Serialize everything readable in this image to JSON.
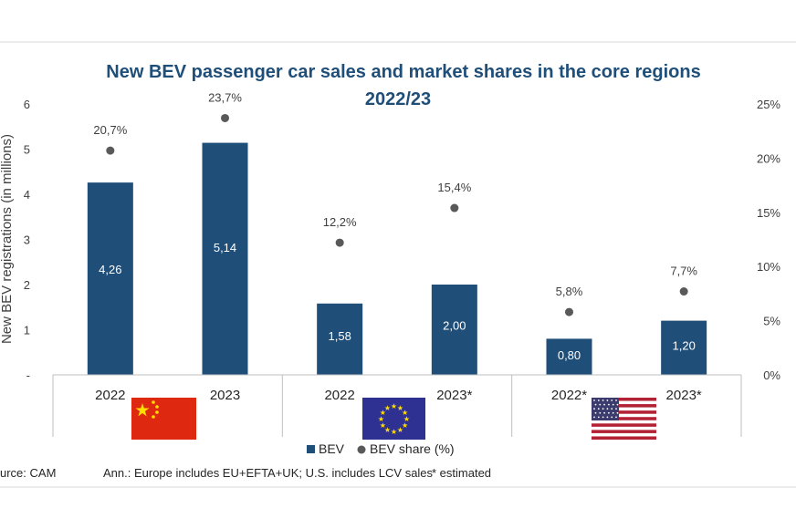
{
  "chart_data": {
    "type": "bar",
    "title_lines": [
      "New BEV passenger car sales and market shares in the core regions",
      "2022/23"
    ],
    "ylabel": "New BEV registrations (in millions)",
    "y_ticks": [
      "-",
      "1",
      "2",
      "3",
      "4",
      "5",
      "6"
    ],
    "y2_ticks": [
      "0%",
      "5%",
      "10%",
      "15%",
      "20%",
      "25%"
    ],
    "ylim": [
      0,
      6
    ],
    "y2lim": [
      0,
      0.25
    ],
    "categories": [
      "2022",
      "2023",
      "2022",
      "2023*",
      "2022*",
      "2023*"
    ],
    "groups": [
      {
        "flag": "china-flag-icon"
      },
      {
        "flag": "eu-flag-icon"
      },
      {
        "flag": "usa-flag-icon"
      }
    ],
    "series": [
      {
        "name": "BEV",
        "type": "bar",
        "color": "#1f4e79",
        "values": [
          4.26,
          5.14,
          1.58,
          2.0,
          0.8,
          1.2
        ],
        "labels": [
          "4,26",
          "5,14",
          "1,58",
          "2,00",
          "0,80",
          "1,20"
        ]
      },
      {
        "name": "BEV share (%)",
        "type": "scatter",
        "axis": "right",
        "color": "#595959",
        "values": [
          0.207,
          0.237,
          0.122,
          0.154,
          0.058,
          0.077
        ],
        "labels": [
          "20,7%",
          "23,7%",
          "12,2%",
          "15,4%",
          "5,8%",
          "7,7%"
        ]
      }
    ],
    "legend_position": "bottom",
    "grid": false
  },
  "footer": {
    "source": "urce: CAM",
    "note": "Ann.: Europe includes EU+EFTA+UK; U.S. includes LCV sales",
    "estimated": "* estimated"
  }
}
